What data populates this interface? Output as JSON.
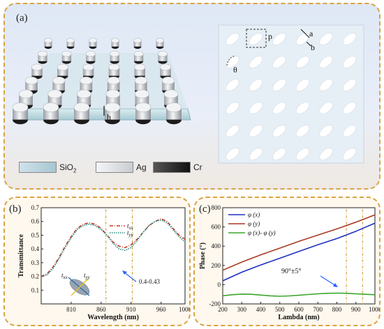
{
  "panel_a": {
    "label": "(a)",
    "dim_h": "h",
    "dim_p": "p",
    "dim_a": "a",
    "dim_b": "b",
    "dim_theta": "θ",
    "materials": [
      {
        "name": "SiO2",
        "sub": "2",
        "base": "SiO",
        "color": "#b9d3df"
      },
      {
        "name": "Ag",
        "color": "#eef0f2"
      },
      {
        "name": "Cr",
        "color": "#1e1e1e"
      }
    ]
  },
  "chart_data": [
    {
      "panel": "(b)",
      "type": "line",
      "ylabel": "Transmittance",
      "xlabel": "Wavelength (nm)",
      "xlim": [
        760,
        1000
      ],
      "ylim": [
        0.0,
        0.7
      ],
      "xticks": [
        810,
        860,
        910,
        960,
        1000
      ],
      "yticks": [
        0.1,
        0.2,
        0.3,
        0.4,
        0.5,
        0.6,
        0.7
      ],
      "ytick_labels": [
        "0.1",
        "0.2",
        "0.3",
        "0.4",
        "0.5",
        "0.6",
        "0.7"
      ],
      "series": [
        {
          "name": "txx",
          "name_base": "t",
          "name_sub": "xx",
          "color": "#c0392b",
          "style": "dashdot",
          "x": [
            760,
            770,
            780,
            790,
            800,
            810,
            820,
            830,
            840,
            850,
            860,
            870,
            880,
            890,
            900,
            910,
            920,
            930,
            940,
            950,
            960,
            970,
            980,
            990,
            1000
          ],
          "y": [
            0.2,
            0.22,
            0.27,
            0.34,
            0.42,
            0.49,
            0.55,
            0.58,
            0.59,
            0.58,
            0.55,
            0.5,
            0.45,
            0.42,
            0.41,
            0.43,
            0.47,
            0.52,
            0.57,
            0.6,
            0.62,
            0.6,
            0.55,
            0.5,
            0.47
          ]
        },
        {
          "name": "tyy",
          "name_base": "t",
          "name_sub": "yy",
          "color": "#2a8a7f",
          "style": "dotted",
          "x": [
            760,
            770,
            780,
            790,
            800,
            810,
            820,
            830,
            840,
            850,
            860,
            870,
            880,
            890,
            900,
            910,
            920,
            930,
            940,
            950,
            960,
            970,
            980,
            990,
            1000
          ],
          "y": [
            0.2,
            0.21,
            0.26,
            0.33,
            0.41,
            0.48,
            0.54,
            0.57,
            0.58,
            0.57,
            0.54,
            0.5,
            0.44,
            0.4,
            0.39,
            0.41,
            0.46,
            0.52,
            0.57,
            0.6,
            0.61,
            0.59,
            0.54,
            0.49,
            0.45
          ]
        }
      ],
      "annotations": [
        {
          "text": "0.4-0.43"
        },
        {
          "text": "t",
          "sub": "xx"
        },
        {
          "text": "t",
          "sub": "yy"
        }
      ],
      "marker_lines": [
        868,
        912
      ]
    },
    {
      "panel": "(c)",
      "type": "line",
      "ylabel": "Phase (°)",
      "xlabel": "Lambda (nm)",
      "xlim": [
        200,
        1000
      ],
      "ylim": [
        -200,
        800
      ],
      "xticks": [
        200,
        300,
        400,
        500,
        600,
        700,
        800,
        900,
        1000
      ],
      "yticks": [
        -200,
        0,
        200,
        400,
        600,
        800
      ],
      "series": [
        {
          "name": "φ (x)",
          "color": "#1f2fbf",
          "x": [
            200,
            300,
            400,
            500,
            600,
            700,
            800,
            900,
            1000
          ],
          "y": [
            40,
            130,
            205,
            275,
            345,
            415,
            480,
            555,
            640
          ]
        },
        {
          "name": "φ (y)",
          "color": "#a83a22",
          "x": [
            200,
            300,
            400,
            500,
            600,
            700,
            800,
            900,
            1000
          ],
          "y": [
            150,
            235,
            310,
            380,
            450,
            515,
            580,
            650,
            725
          ]
        },
        {
          "name": "φ (x)- φ (y)",
          "color": "#3aa62a",
          "x": [
            200,
            250,
            300,
            350,
            400,
            450,
            500,
            550,
            600,
            650,
            700,
            750,
            800,
            850,
            900,
            950,
            1000
          ],
          "y": [
            -115,
            -104,
            -98,
            -100,
            -108,
            -116,
            -120,
            -117,
            -110,
            -102,
            -95,
            -90,
            -88,
            -90,
            -95,
            -100,
            -104
          ]
        }
      ],
      "annotations": [
        {
          "text": "90°±5°"
        }
      ],
      "marker_lines": [
        850,
        935
      ]
    }
  ]
}
